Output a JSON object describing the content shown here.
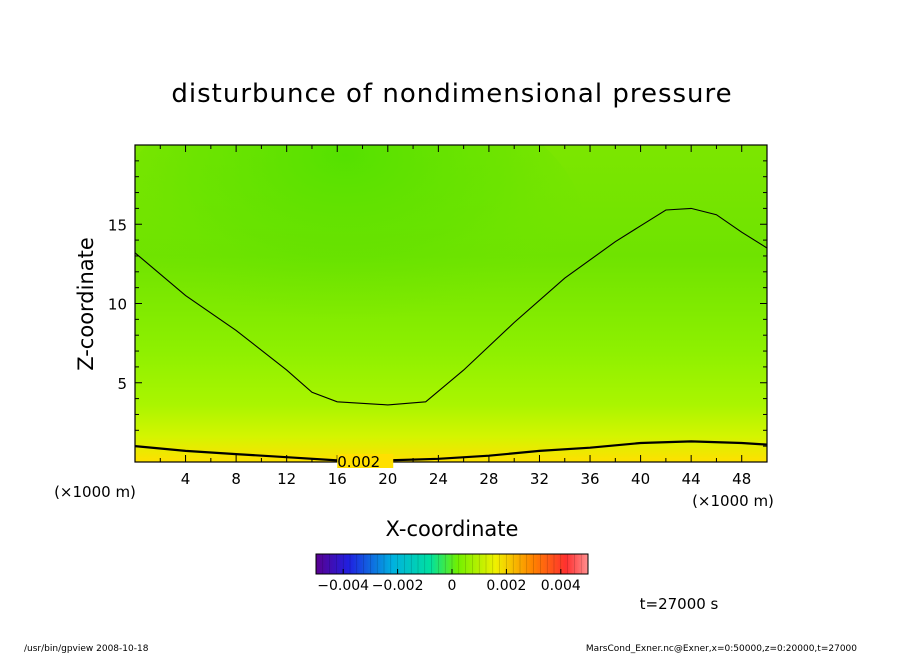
{
  "chart_data": {
    "type": "heatmap",
    "title": "disturbunce of nondimensional pressure",
    "xlabel": "X-coordinate",
    "ylabel": "Z-coordinate",
    "x_unit": "(×1000 m)",
    "y_unit": "(×1000 m)",
    "xlim": [
      0,
      50
    ],
    "ylim": [
      0,
      20
    ],
    "x_ticks": [
      "4",
      "8",
      "12",
      "16",
      "20",
      "24",
      "28",
      "32",
      "36",
      "40",
      "44",
      "48"
    ],
    "y_ticks": [
      "5",
      "10",
      "15"
    ],
    "colorbar": {
      "range": [
        -0.005,
        0.005
      ],
      "ticks": [
        "−0.004",
        "−0.002",
        "0",
        "0.002",
        "0.004"
      ]
    },
    "contours": [
      {
        "label": "",
        "points": [
          [
            0,
            13.2
          ],
          [
            4,
            10.5
          ],
          [
            8,
            8.3
          ],
          [
            12,
            5.8
          ],
          [
            14,
            4.4
          ],
          [
            16,
            3.8
          ],
          [
            20,
            3.6
          ],
          [
            23,
            3.8
          ],
          [
            26,
            5.8
          ],
          [
            30,
            8.8
          ],
          [
            34,
            11.6
          ],
          [
            38,
            13.9
          ],
          [
            40,
            14.9
          ],
          [
            42,
            15.9
          ],
          [
            44,
            16.0
          ],
          [
            46,
            15.6
          ],
          [
            48,
            14.5
          ],
          [
            50,
            13.5
          ]
        ]
      },
      {
        "label": "0.002",
        "points": [
          [
            0,
            1.0
          ],
          [
            4,
            0.7
          ],
          [
            8,
            0.5
          ],
          [
            12,
            0.3
          ],
          [
            16,
            0.1
          ],
          [
            20,
            0.1
          ],
          [
            24,
            0.2
          ],
          [
            28,
            0.4
          ],
          [
            32,
            0.7
          ],
          [
            36,
            0.9
          ],
          [
            40,
            1.2
          ],
          [
            44,
            1.3
          ],
          [
            48,
            1.2
          ],
          [
            50,
            1.1
          ]
        ]
      }
    ],
    "annotation": "t=27000 s"
  },
  "footer": {
    "left": "/usr/bin/gpview   2008-10-18",
    "right": "MarsCond_Exner.nc@Exner,x=0:50000,z=0:20000,t=27000"
  },
  "colors": {
    "field_low": "#44e000",
    "field_mid": "#88f000",
    "field_high": "#ffe000",
    "contour": "#000000"
  }
}
